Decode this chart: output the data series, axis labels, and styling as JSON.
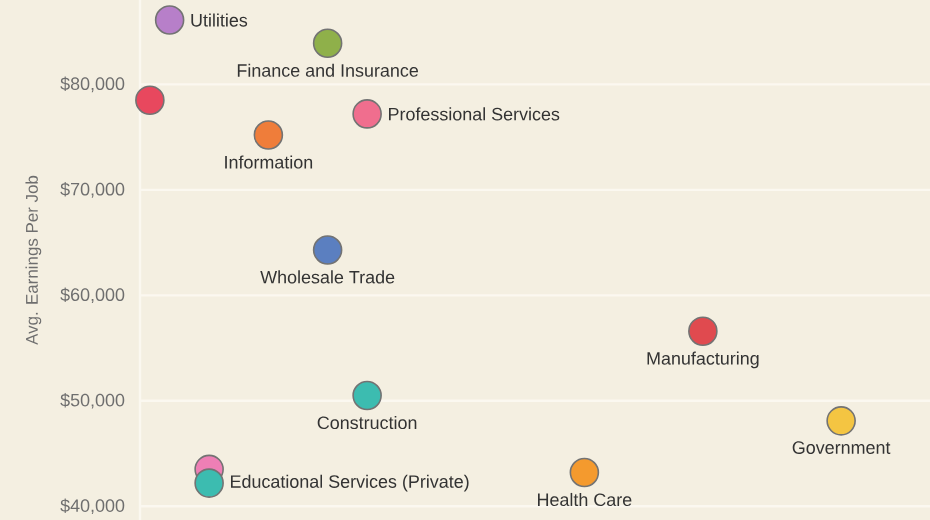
{
  "chart_data": {
    "type": "scatter",
    "ylabel": "Avg. Earnings Per Job",
    "categories": [
      null,
      null,
      null,
      null,
      null,
      null,
      null,
      null,
      null,
      null,
      null,
      null,
      null,
      null,
      null,
      null,
      null,
      null,
      null,
      null,
      null,
      null,
      null,
      null,
      null,
      null,
      null,
      null,
      null,
      null,
      null,
      null,
      null,
      null,
      null,
      null,
      null,
      null,
      null,
      null
    ],
    "series": [
      {
        "values": [
          78500,
          86100,
          null,
          43500,
          null,
          null,
          75200,
          null,
          null,
          83900,
          null,
          77200,
          null,
          null,
          null,
          null,
          null,
          null,
          null,
          null,
          null,
          null,
          43200,
          null,
          null,
          null,
          null,
          null,
          56600,
          null,
          null,
          null,
          null,
          null,
          null,
          48100,
          null,
          null,
          null,
          null
        ],
        "colors": [
          "#e8485e",
          "#b77fc9",
          null,
          "#ee7fb5",
          null,
          null,
          "#ef7d3a",
          null,
          null,
          "#8fb04a",
          null,
          "#f06e8e",
          null,
          null,
          null,
          null,
          null,
          null,
          null,
          null,
          null,
          null,
          "#f49a2e",
          null,
          null,
          null,
          null,
          null,
          "#e04a4f",
          null,
          null,
          null,
          null,
          null,
          null,
          "#f4c542",
          null,
          null,
          null,
          null
        ],
        "value_labels": [
          null,
          "Utilities",
          null,
          null,
          null,
          null,
          "Information",
          null,
          null,
          "Finance and Insurance",
          null,
          "Professional Services",
          null,
          null,
          null,
          null,
          null,
          null,
          null,
          null,
          null,
          null,
          "Health Care",
          null,
          null,
          null,
          null,
          null,
          "Manufacturing",
          null,
          null,
          null,
          null,
          null,
          null,
          "Government",
          null,
          null,
          null,
          null
        ]
      },
      {
        "values": [
          null,
          null,
          null,
          42200,
          null,
          null,
          null,
          null,
          null,
          64300,
          null,
          50500,
          null,
          null,
          null,
          null,
          null,
          null,
          null,
          null,
          null,
          null,
          null,
          null,
          null,
          null,
          null,
          null,
          null,
          null,
          null,
          null,
          null,
          null,
          null,
          null,
          null,
          null,
          null,
          null
        ],
        "colors": [
          null,
          null,
          null,
          "#3cbcb0",
          null,
          null,
          null,
          null,
          null,
          "#5b7fc0",
          null,
          "#3cbcb0",
          null,
          null,
          null,
          null,
          null,
          null,
          null,
          null,
          null,
          null,
          null,
          null,
          null,
          null,
          null,
          null,
          null,
          null,
          null,
          null,
          null,
          null,
          null,
          null,
          null,
          null,
          null,
          null
        ],
        "value_labels": [
          null,
          null,
          null,
          "Educational Services (Private)",
          null,
          null,
          null,
          null,
          null,
          "Wholesale Trade",
          null,
          "Construction",
          null,
          null,
          null,
          null,
          null,
          null,
          null,
          null,
          null,
          null,
          null,
          null,
          null,
          null,
          null,
          null,
          null,
          null,
          null,
          null,
          null,
          null,
          null,
          null,
          null,
          null,
          null,
          null
        ]
      }
    ],
    "ylim": [
      38700,
      88000
    ],
    "yticks": [
      {
        "value": 40000,
        "label": "$40,000"
      },
      {
        "value": 50000,
        "label": "$50,000"
      },
      {
        "value": 60000,
        "label": "$60,000"
      },
      {
        "value": 70000,
        "label": "$70,000"
      },
      {
        "value": 80000,
        "label": "$80,000"
      }
    ],
    "grid": "y",
    "tick_labels": "y",
    "marker": "circle"
  }
}
